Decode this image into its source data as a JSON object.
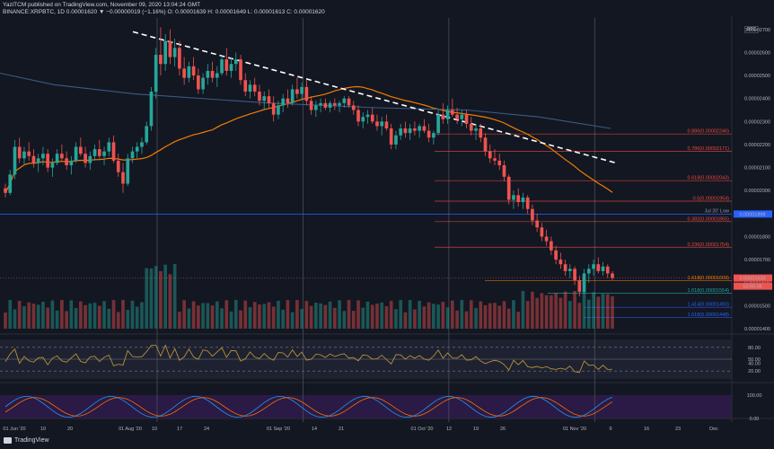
{
  "header": {
    "publisher_line": "YaziTCM published on TradingView.com, November 09, 2020 13:04:24 GMT",
    "symbol_line": "BINANCE:XRPBTC, 1D  0.00001620  ▼ −0.00000019 (−1.16%)  O: 0.00001639  H: 0.00001649  L: 0.00001613  C: 0.00001620"
  },
  "currency_badge": "BTC",
  "footer": {
    "brand": "TradingView"
  },
  "colors": {
    "up": "#26a69a",
    "down": "#ef5350",
    "orange": "#f57c00",
    "blue_ma": "#3b5b84",
    "fib": "#e64a3c",
    "blue_line": "#2962ff",
    "price_badge": "#ef5350"
  },
  "chart_data": {
    "type": "candlestick",
    "title": "",
    "timeframe": "1D",
    "symbol": "BINANCE:XRPBTC",
    "y_ticks": [
      "0.00002700",
      "0.00002600",
      "0.00002500",
      "0.00002400",
      "0.00002300",
      "0.00002200",
      "0.00002100",
      "0.00002000",
      "0.00001900",
      "0.00001800",
      "0.00001700",
      "0.00001600",
      "0.00001500",
      "0.00001400"
    ],
    "ylim": [
      1.4e-05,
      2.75e-05
    ],
    "x_ticks": [
      "01 Jun '20",
      "10",
      "20",
      "01 Aug '20",
      "10",
      "17",
      "24",
      "01 Sep '20",
      "14",
      "21",
      "01 Oct '20",
      "12",
      "19",
      "26",
      "01 Nov '20",
      "9",
      "16",
      "23",
      "Dec"
    ],
    "price_levels": [
      {
        "label": "0.886(0.00002246)",
        "value": 2.246e-05,
        "color": "#e64a3c"
      },
      {
        "label": "0.786(0.00002171)",
        "value": 2.171e-05,
        "color": "#e64a3c"
      },
      {
        "label": "0.618(0.00002043)",
        "value": 2.043e-05,
        "color": "#e64a3c"
      },
      {
        "label": "0.5(0.00001954)",
        "value": 1.954e-05,
        "color": "#e64a3c"
      },
      {
        "label": "0.382(0.00001865)",
        "value": 1.865e-05,
        "color": "#e64a3c"
      },
      {
        "label": "0.236(0.00001754)",
        "value": 1.754e-05,
        "color": "#e64a3c"
      },
      {
        "label": "1.618(0.00001609)",
        "value": 1.609e-05,
        "color": "#f57c00"
      },
      {
        "label": "1.618(0.00001554)",
        "value": 1.554e-05,
        "color": "#26a69a"
      },
      {
        "label": "1.414(0.00001493)",
        "value": 1.493e-05,
        "color": "#2962ff"
      },
      {
        "label": "1.618(0.00001448)",
        "value": 1.448e-05,
        "color": "#2962ff"
      }
    ],
    "support_line": {
      "value": 1.898e-05,
      "label": "Jul 20' Low",
      "badge": "0.00001898"
    },
    "current_price": {
      "value": 1.62e-05,
      "badge": "0.00001620",
      "countdown": "10:55:35"
    },
    "candles": [
      [
        2.01e-05,
        2.03e-05,
        1.97e-05,
        1.99e-05
      ],
      [
        1.99e-05,
        2.09e-05,
        1.98e-05,
        2.07e-05
      ],
      [
        2.07e-05,
        2.22e-05,
        2.05e-05,
        2.19e-05
      ],
      [
        2.19e-05,
        2.23e-05,
        2.12e-05,
        2.14e-05
      ],
      [
        2.14e-05,
        2.19e-05,
        2.11e-05,
        2.17e-05
      ],
      [
        2.17e-05,
        2.21e-05,
        2.13e-05,
        2.15e-05
      ],
      [
        2.15e-05,
        2.18e-05,
        2.1e-05,
        2.12e-05
      ],
      [
        2.12e-05,
        2.16e-05,
        2.08e-05,
        2.14e-05
      ],
      [
        2.14e-05,
        2.19e-05,
        2.11e-05,
        2.16e-05
      ],
      [
        2.16e-05,
        2.18e-05,
        2.08e-05,
        2.1e-05
      ],
      [
        2.1e-05,
        2.14e-05,
        2.06e-05,
        2.12e-05
      ],
      [
        2.12e-05,
        2.18e-05,
        2.11e-05,
        2.16e-05
      ],
      [
        2.16e-05,
        2.2e-05,
        2.13e-05,
        2.14e-05
      ],
      [
        2.14e-05,
        2.17e-05,
        2.09e-05,
        2.11e-05
      ],
      [
        2.11e-05,
        2.15e-05,
        2.07e-05,
        2.13e-05
      ],
      [
        2.13e-05,
        2.21e-05,
        2.12e-05,
        2.19e-05
      ],
      [
        2.19e-05,
        2.23e-05,
        2.15e-05,
        2.16e-05
      ],
      [
        2.16e-05,
        2.19e-05,
        2.1e-05,
        2.12e-05
      ],
      [
        2.12e-05,
        2.17e-05,
        2.09e-05,
        2.15e-05
      ],
      [
        2.15e-05,
        2.2e-05,
        2.13e-05,
        2.18e-05
      ],
      [
        2.18e-05,
        2.22e-05,
        2.14e-05,
        2.15e-05
      ],
      [
        2.15e-05,
        2.19e-05,
        2.11e-05,
        2.17e-05
      ],
      [
        2.17e-05,
        2.23e-05,
        2.15e-05,
        2.21e-05
      ],
      [
        2.21e-05,
        2.24e-05,
        2.12e-05,
        2.13e-05
      ],
      [
        2.13e-05,
        2.16e-05,
        2.06e-05,
        2.08e-05
      ],
      [
        2.08e-05,
        2.12e-05,
        1.99e-05,
        2.03e-05
      ],
      [
        2.03e-05,
        2.16e-05,
        2.02e-05,
        2.14e-05
      ],
      [
        2.14e-05,
        2.19e-05,
        2.12e-05,
        2.17e-05
      ],
      [
        2.17e-05,
        2.21e-05,
        2.14e-05,
        2.19e-05
      ],
      [
        2.19e-05,
        2.23e-05,
        2.16e-05,
        2.21e-05
      ],
      [
        2.21e-05,
        2.3e-05,
        2.2e-05,
        2.28e-05
      ],
      [
        2.28e-05,
        2.45e-05,
        2.26e-05,
        2.43e-05
      ],
      [
        2.43e-05,
        2.62e-05,
        2.4e-05,
        2.59e-05
      ],
      [
        2.59e-05,
        2.71e-05,
        2.5e-05,
        2.55e-05
      ],
      [
        2.55e-05,
        2.68e-05,
        2.52e-05,
        2.65e-05
      ],
      [
        2.65e-05,
        2.7e-05,
        2.55e-05,
        2.58e-05
      ],
      [
        2.58e-05,
        2.66e-05,
        2.54e-05,
        2.62e-05
      ],
      [
        2.62e-05,
        2.65e-05,
        2.5e-05,
        2.53e-05
      ],
      [
        2.53e-05,
        2.58e-05,
        2.46e-05,
        2.49e-05
      ],
      [
        2.49e-05,
        2.56e-05,
        2.47e-05,
        2.54e-05
      ],
      [
        2.54e-05,
        2.58e-05,
        2.48e-05,
        2.5e-05
      ],
      [
        2.5e-05,
        2.53e-05,
        2.42e-05,
        2.44e-05
      ],
      [
        2.44e-05,
        2.51e-05,
        2.42e-05,
        2.49e-05
      ],
      [
        2.49e-05,
        2.55e-05,
        2.46e-05,
        2.52e-05
      ],
      [
        2.52e-05,
        2.56e-05,
        2.47e-05,
        2.49e-05
      ],
      [
        2.49e-05,
        2.54e-05,
        2.45e-05,
        2.51e-05
      ],
      [
        2.51e-05,
        2.59e-05,
        2.5e-05,
        2.57e-05
      ],
      [
        2.57e-05,
        2.62e-05,
        2.5e-05,
        2.52e-05
      ],
      [
        2.52e-05,
        2.58e-05,
        2.49e-05,
        2.55e-05
      ],
      [
        2.55e-05,
        2.6e-05,
        2.52e-05,
        2.57e-05
      ],
      [
        2.57e-05,
        2.59e-05,
        2.46e-05,
        2.48e-05
      ],
      [
        2.48e-05,
        2.51e-05,
        2.41e-05,
        2.43e-05
      ],
      [
        2.43e-05,
        2.48e-05,
        2.4e-05,
        2.46e-05
      ],
      [
        2.46e-05,
        2.49e-05,
        2.41e-05,
        2.43e-05
      ],
      [
        2.43e-05,
        2.46e-05,
        2.37e-05,
        2.39e-05
      ],
      [
        2.39e-05,
        2.43e-05,
        2.35e-05,
        2.41e-05
      ],
      [
        2.41e-05,
        2.44e-05,
        2.36e-05,
        2.38e-05
      ],
      [
        2.38e-05,
        2.41e-05,
        2.3e-05,
        2.33e-05
      ],
      [
        2.33e-05,
        2.39e-05,
        2.31e-05,
        2.37e-05
      ],
      [
        2.37e-05,
        2.42e-05,
        2.34e-05,
        2.4e-05
      ],
      [
        2.4e-05,
        2.44e-05,
        2.36e-05,
        2.38e-05
      ],
      [
        2.38e-05,
        2.46e-05,
        2.37e-05,
        2.44e-05
      ],
      [
        2.44e-05,
        2.49e-05,
        2.4e-05,
        2.42e-05
      ],
      [
        2.42e-05,
        2.47e-05,
        2.39e-05,
        2.45e-05
      ],
      [
        2.45e-05,
        2.48e-05,
        2.37e-05,
        2.39e-05
      ],
      [
        2.39e-05,
        2.41e-05,
        2.33e-05,
        2.35e-05
      ],
      [
        2.35e-05,
        2.39e-05,
        2.32e-05,
        2.37e-05
      ],
      [
        2.37e-05,
        2.4e-05,
        2.34e-05,
        2.38e-05
      ],
      [
        2.38e-05,
        2.4e-05,
        2.35e-05,
        2.36e-05
      ],
      [
        2.36e-05,
        2.39e-05,
        2.34e-05,
        2.38e-05
      ],
      [
        2.38e-05,
        2.4e-05,
        2.35e-05,
        2.37e-05
      ],
      [
        2.37e-05,
        2.39e-05,
        2.34e-05,
        2.38e-05
      ],
      [
        2.38e-05,
        2.41e-05,
        2.36e-05,
        2.4e-05
      ],
      [
        2.4e-05,
        2.41e-05,
        2.36e-05,
        2.37e-05
      ],
      [
        2.37e-05,
        2.39e-05,
        2.33e-05,
        2.35e-05
      ],
      [
        2.35e-05,
        2.37e-05,
        2.28e-05,
        2.3e-05
      ],
      [
        2.3e-05,
        2.34e-05,
        2.27e-05,
        2.32e-05
      ],
      [
        2.32e-05,
        2.35e-05,
        2.29e-05,
        2.33e-05
      ],
      [
        2.33e-05,
        2.36e-05,
        2.29e-05,
        2.3e-05
      ],
      [
        2.3e-05,
        2.33e-05,
        2.26e-05,
        2.28e-05
      ],
      [
        2.28e-05,
        2.32e-05,
        2.24e-05,
        2.3e-05
      ],
      [
        2.3e-05,
        2.33e-05,
        2.26e-05,
        2.27e-05
      ],
      [
        2.27e-05,
        2.29e-05,
        2.18e-05,
        2.2e-05
      ],
      [
        2.2e-05,
        2.26e-05,
        2.18e-05,
        2.24e-05
      ],
      [
        2.24e-05,
        2.29e-05,
        2.22e-05,
        2.27e-05
      ],
      [
        2.27e-05,
        2.3e-05,
        2.23e-05,
        2.25e-05
      ],
      [
        2.25e-05,
        2.29e-05,
        2.22e-05,
        2.27e-05
      ],
      [
        2.27e-05,
        2.3e-05,
        2.24e-05,
        2.26e-05
      ],
      [
        2.26e-05,
        2.29e-05,
        2.23e-05,
        2.28e-05
      ],
      [
        2.28e-05,
        2.31e-05,
        2.25e-05,
        2.26e-05
      ],
      [
        2.26e-05,
        2.29e-05,
        2.21e-05,
        2.23e-05
      ],
      [
        2.23e-05,
        2.26e-05,
        2.2e-05,
        2.25e-05
      ],
      [
        2.25e-05,
        2.35e-05,
        2.24e-05,
        2.33e-05
      ],
      [
        2.33e-05,
        2.38e-05,
        2.29e-05,
        2.31e-05
      ],
      [
        2.31e-05,
        2.37e-05,
        2.29e-05,
        2.35e-05
      ],
      [
        2.35e-05,
        2.4e-05,
        2.32e-05,
        2.33e-05
      ],
      [
        2.33e-05,
        2.36e-05,
        2.29e-05,
        2.31e-05
      ],
      [
        2.31e-05,
        2.35e-05,
        2.28e-05,
        2.33e-05
      ],
      [
        2.33e-05,
        2.35e-05,
        2.27e-05,
        2.29e-05
      ],
      [
        2.29e-05,
        2.32e-05,
        2.24e-05,
        2.26e-05
      ],
      [
        2.26e-05,
        2.29e-05,
        2.22e-05,
        2.27e-05
      ],
      [
        2.27e-05,
        2.29e-05,
        2.21e-05,
        2.23e-05
      ],
      [
        2.23e-05,
        2.25e-05,
        2.15e-05,
        2.17e-05
      ],
      [
        2.17e-05,
        2.2e-05,
        2.12e-05,
        2.14e-05
      ],
      [
        2.14e-05,
        2.18e-05,
        2.11e-05,
        2.13e-05
      ],
      [
        2.13e-05,
        2.16e-05,
        2.09e-05,
        2.11e-05
      ],
      [
        2.11e-05,
        2.13e-05,
        2.04e-05,
        2.06e-05
      ],
      [
        2.06e-05,
        2.07e-05,
        1.94e-05,
        1.96e-05
      ],
      [
        1.96e-05,
        2e-05,
        1.92e-05,
        1.98e-05
      ],
      [
        1.98e-05,
        2.01e-05,
        1.93e-05,
        1.95e-05
      ],
      [
        1.95e-05,
        1.99e-05,
        1.92e-05,
        1.97e-05
      ],
      [
        1.97e-05,
        1.98e-05,
        1.9e-05,
        1.92e-05
      ],
      [
        1.92e-05,
        1.94e-05,
        1.85e-05,
        1.87e-05
      ],
      [
        1.87e-05,
        1.9e-05,
        1.82e-05,
        1.84e-05
      ],
      [
        1.84e-05,
        1.86e-05,
        1.78e-05,
        1.8e-05
      ],
      [
        1.8e-05,
        1.83e-05,
        1.76e-05,
        1.78e-05
      ],
      [
        1.78e-05,
        1.8e-05,
        1.72e-05,
        1.74e-05
      ],
      [
        1.74e-05,
        1.76e-05,
        1.68e-05,
        1.7e-05
      ],
      [
        1.7e-05,
        1.73e-05,
        1.66e-05,
        1.68e-05
      ],
      [
        1.68e-05,
        1.7e-05,
        1.63e-05,
        1.65e-05
      ],
      [
        1.65e-05,
        1.68e-05,
        1.62e-05,
        1.66e-05
      ],
      [
        1.66e-05,
        1.67e-05,
        1.59e-05,
        1.61e-05
      ],
      [
        1.61e-05,
        1.63e-05,
        1.54e-05,
        1.56e-05
      ],
      [
        1.56e-05,
        1.66e-05,
        1.55e-05,
        1.64e-05
      ],
      [
        1.64e-05,
        1.68e-05,
        1.6e-05,
        1.66e-05
      ],
      [
        1.66e-05,
        1.7e-05,
        1.63e-05,
        1.68e-05
      ],
      [
        1.68e-05,
        1.71e-05,
        1.64e-05,
        1.65e-05
      ],
      [
        1.65e-05,
        1.69e-05,
        1.63e-05,
        1.67e-05
      ],
      [
        1.67e-05,
        1.68e-05,
        1.62e-05,
        1.64e-05
      ],
      [
        1.64e-05,
        1.65e-05,
        1.61e-05,
        1.62e-05
      ]
    ],
    "rsi_ticks": [
      "80.00",
      "50.00",
      "40.00",
      "20.00"
    ],
    "rsi_current": "40.00",
    "stoch_ticks": [
      "100.00",
      "0.00"
    ]
  }
}
